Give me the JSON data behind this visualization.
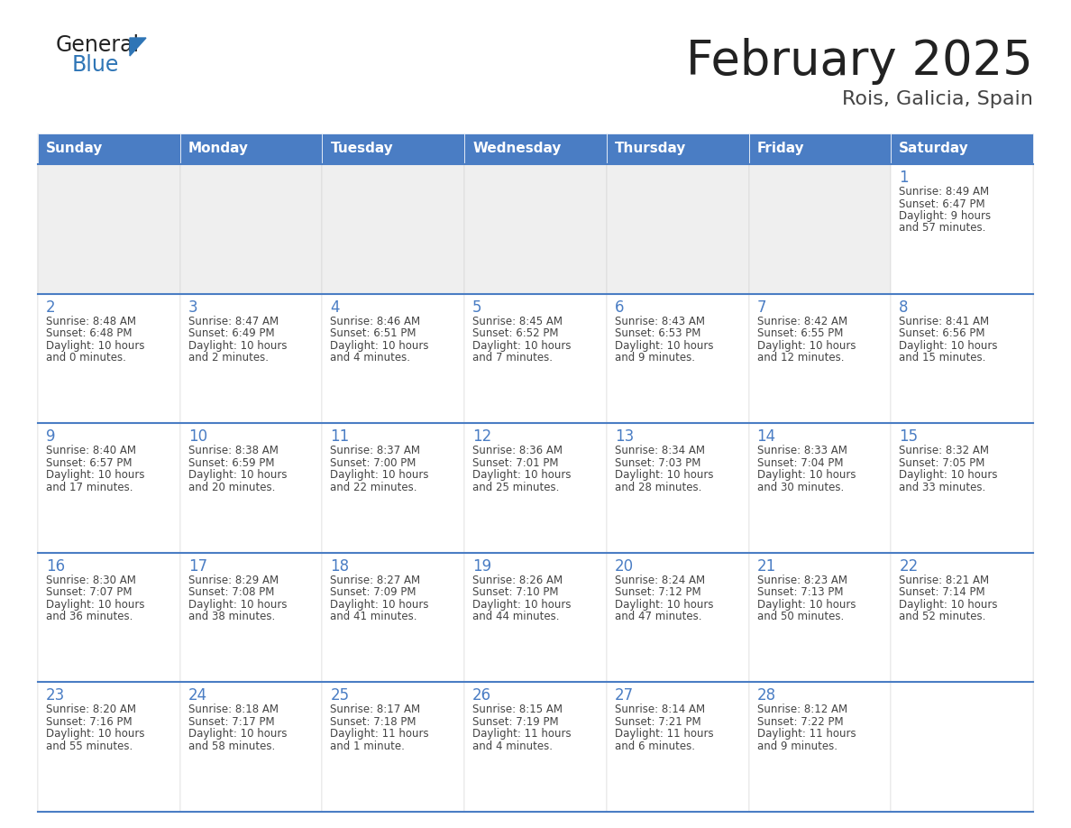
{
  "title": "February 2025",
  "subtitle": "Rois, Galicia, Spain",
  "days_of_week": [
    "Sunday",
    "Monday",
    "Tuesday",
    "Wednesday",
    "Thursday",
    "Friday",
    "Saturday"
  ],
  "header_bg": "#4A7DC4",
  "header_text": "#FFFFFF",
  "cell_bg_light": "#EFEFEF",
  "cell_bg_white": "#FFFFFF",
  "separator_color": "#4A7DC4",
  "day_num_color": "#4A7DC4",
  "text_color": "#444444",
  "calendar_data": [
    [
      null,
      null,
      null,
      null,
      null,
      null,
      {
        "day": 1,
        "sunrise": "8:49 AM",
        "sunset": "6:47 PM",
        "daylight": "9 hours and 57 minutes."
      }
    ],
    [
      {
        "day": 2,
        "sunrise": "8:48 AM",
        "sunset": "6:48 PM",
        "daylight": "10 hours and 0 minutes."
      },
      {
        "day": 3,
        "sunrise": "8:47 AM",
        "sunset": "6:49 PM",
        "daylight": "10 hours and 2 minutes."
      },
      {
        "day": 4,
        "sunrise": "8:46 AM",
        "sunset": "6:51 PM",
        "daylight": "10 hours and 4 minutes."
      },
      {
        "day": 5,
        "sunrise": "8:45 AM",
        "sunset": "6:52 PM",
        "daylight": "10 hours and 7 minutes."
      },
      {
        "day": 6,
        "sunrise": "8:43 AM",
        "sunset": "6:53 PM",
        "daylight": "10 hours and 9 minutes."
      },
      {
        "day": 7,
        "sunrise": "8:42 AM",
        "sunset": "6:55 PM",
        "daylight": "10 hours and 12 minutes."
      },
      {
        "day": 8,
        "sunrise": "8:41 AM",
        "sunset": "6:56 PM",
        "daylight": "10 hours and 15 minutes."
      }
    ],
    [
      {
        "day": 9,
        "sunrise": "8:40 AM",
        "sunset": "6:57 PM",
        "daylight": "10 hours and 17 minutes."
      },
      {
        "day": 10,
        "sunrise": "8:38 AM",
        "sunset": "6:59 PM",
        "daylight": "10 hours and 20 minutes."
      },
      {
        "day": 11,
        "sunrise": "8:37 AM",
        "sunset": "7:00 PM",
        "daylight": "10 hours and 22 minutes."
      },
      {
        "day": 12,
        "sunrise": "8:36 AM",
        "sunset": "7:01 PM",
        "daylight": "10 hours and 25 minutes."
      },
      {
        "day": 13,
        "sunrise": "8:34 AM",
        "sunset": "7:03 PM",
        "daylight": "10 hours and 28 minutes."
      },
      {
        "day": 14,
        "sunrise": "8:33 AM",
        "sunset": "7:04 PM",
        "daylight": "10 hours and 30 minutes."
      },
      {
        "day": 15,
        "sunrise": "8:32 AM",
        "sunset": "7:05 PM",
        "daylight": "10 hours and 33 minutes."
      }
    ],
    [
      {
        "day": 16,
        "sunrise": "8:30 AM",
        "sunset": "7:07 PM",
        "daylight": "10 hours and 36 minutes."
      },
      {
        "day": 17,
        "sunrise": "8:29 AM",
        "sunset": "7:08 PM",
        "daylight": "10 hours and 38 minutes."
      },
      {
        "day": 18,
        "sunrise": "8:27 AM",
        "sunset": "7:09 PM",
        "daylight": "10 hours and 41 minutes."
      },
      {
        "day": 19,
        "sunrise": "8:26 AM",
        "sunset": "7:10 PM",
        "daylight": "10 hours and 44 minutes."
      },
      {
        "day": 20,
        "sunrise": "8:24 AM",
        "sunset": "7:12 PM",
        "daylight": "10 hours and 47 minutes."
      },
      {
        "day": 21,
        "sunrise": "8:23 AM",
        "sunset": "7:13 PM",
        "daylight": "10 hours and 50 minutes."
      },
      {
        "day": 22,
        "sunrise": "8:21 AM",
        "sunset": "7:14 PM",
        "daylight": "10 hours and 52 minutes."
      }
    ],
    [
      {
        "day": 23,
        "sunrise": "8:20 AM",
        "sunset": "7:16 PM",
        "daylight": "10 hours and 55 minutes."
      },
      {
        "day": 24,
        "sunrise": "8:18 AM",
        "sunset": "7:17 PM",
        "daylight": "10 hours and 58 minutes."
      },
      {
        "day": 25,
        "sunrise": "8:17 AM",
        "sunset": "7:18 PM",
        "daylight": "11 hours and 1 minute."
      },
      {
        "day": 26,
        "sunrise": "8:15 AM",
        "sunset": "7:19 PM",
        "daylight": "11 hours and 4 minutes."
      },
      {
        "day": 27,
        "sunrise": "8:14 AM",
        "sunset": "7:21 PM",
        "daylight": "11 hours and 6 minutes."
      },
      {
        "day": 28,
        "sunrise": "8:12 AM",
        "sunset": "7:22 PM",
        "daylight": "11 hours and 9 minutes."
      },
      null
    ]
  ]
}
